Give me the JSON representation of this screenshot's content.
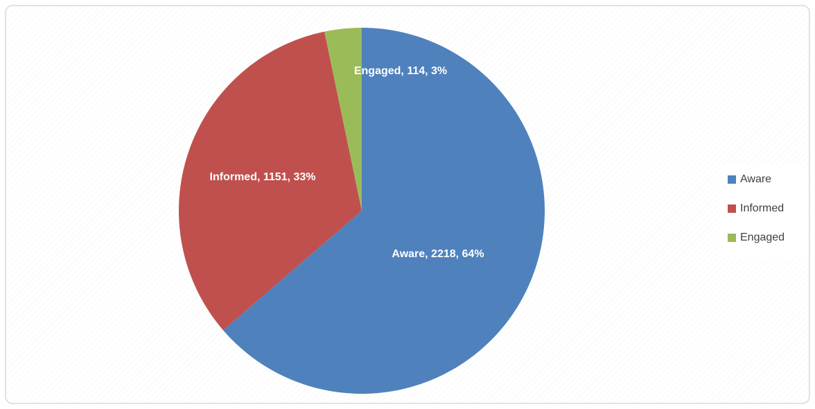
{
  "chart_data": {
    "type": "pie",
    "categories": [
      "Aware",
      "Informed",
      "Engaged"
    ],
    "values": [
      2218,
      1151,
      114
    ],
    "value_labels": [
      "Aware, 2218, 64%",
      "Informed, 1151, 33%",
      "Engaged, 114, 3%"
    ],
    "colors": [
      "#4f81bd",
      "#c0504d",
      "#9bbb59"
    ],
    "legend": "right"
  }
}
